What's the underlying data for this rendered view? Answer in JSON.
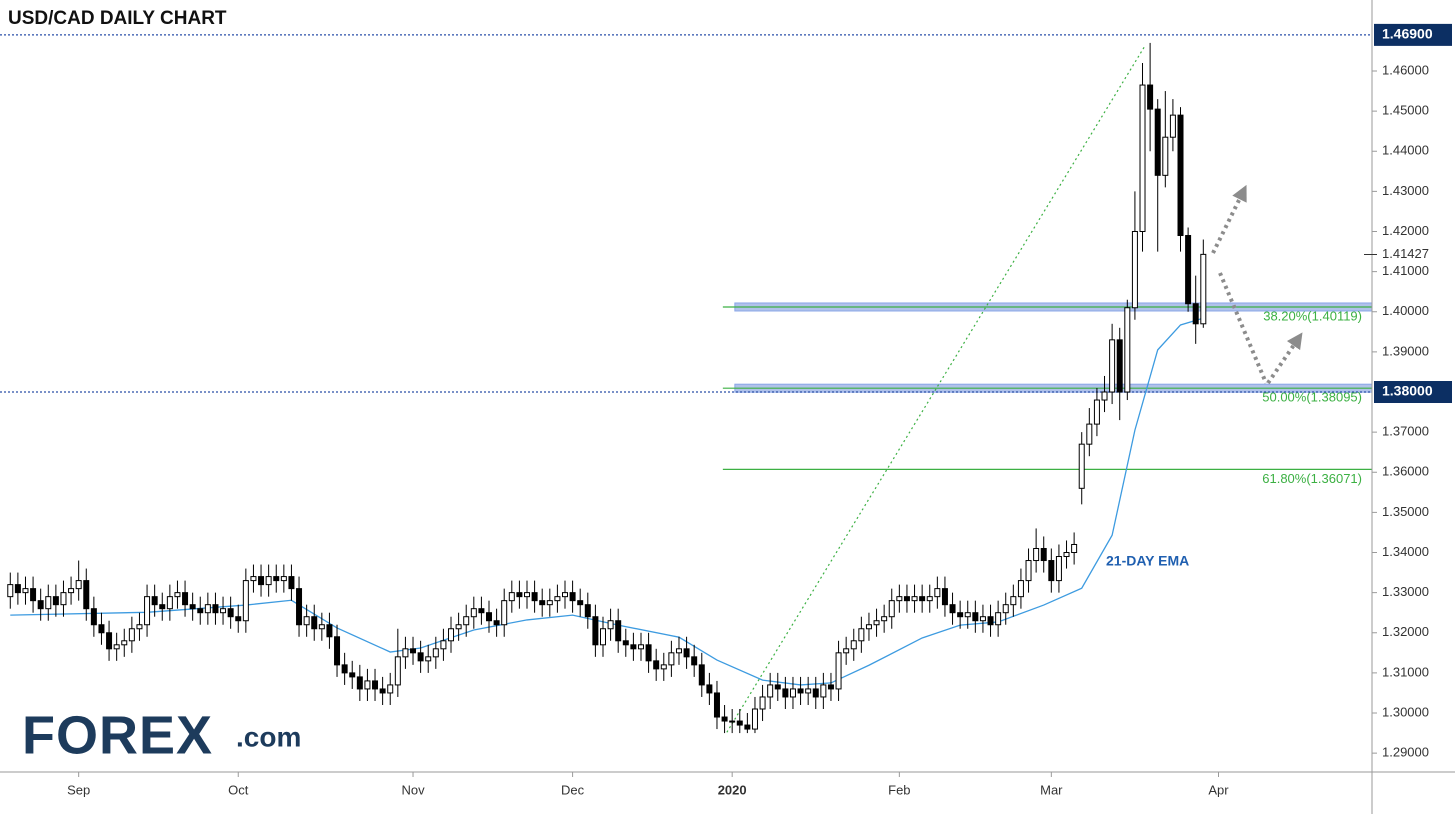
{
  "chart_data": {
    "type": "candlestick",
    "title": "USD/CAD DAILY CHART",
    "up_color": "#ffffff",
    "down_color": "#000000",
    "ylim": [
      1.2853,
      1.4757
    ],
    "yticks": [
      {
        "value": 1.29,
        "label": "1.29000"
      },
      {
        "value": 1.3,
        "label": "1.30000"
      },
      {
        "value": 1.31,
        "label": "1.31000"
      },
      {
        "value": 1.32,
        "label": "1.32000"
      },
      {
        "value": 1.33,
        "label": "1.33000"
      },
      {
        "value": 1.34,
        "label": "1.34000"
      },
      {
        "value": 1.35,
        "label": "1.35000"
      },
      {
        "value": 1.36,
        "label": "1.36000"
      },
      {
        "value": 1.37,
        "label": "1.37000"
      },
      {
        "value": 1.39,
        "label": "1.39000"
      },
      {
        "value": 1.4,
        "label": "1.40000"
      },
      {
        "value": 1.41,
        "label": "1.41000"
      },
      {
        "value": 1.42,
        "label": "1.42000"
      },
      {
        "value": 1.43,
        "label": "1.43000"
      },
      {
        "value": 1.44,
        "label": "1.44000"
      },
      {
        "value": 1.45,
        "label": "1.45000"
      },
      {
        "value": 1.46,
        "label": "1.46000"
      }
    ],
    "xlim": [
      -0.3,
      179.2
    ],
    "xticks": [
      {
        "value": 9,
        "label": "Sep"
      },
      {
        "value": 30,
        "label": "Oct"
      },
      {
        "value": 53,
        "label": "Nov"
      },
      {
        "value": 74,
        "label": "Dec"
      },
      {
        "value": 95,
        "label": "2020"
      },
      {
        "value": 117,
        "label": "Feb"
      },
      {
        "value": 137,
        "label": "Mar"
      },
      {
        "value": 159,
        "label": "Apr"
      }
    ],
    "open": [
      1.329,
      1.332,
      1.33,
      1.331,
      1.328,
      1.326,
      1.329,
      1.327,
      1.33,
      1.331,
      1.333,
      1.326,
      1.322,
      1.32,
      1.316,
      1.317,
      1.318,
      1.321,
      1.322,
      1.329,
      1.327,
      1.326,
      1.329,
      1.33,
      1.327,
      1.326,
      1.325,
      1.327,
      1.325,
      1.326,
      1.324,
      1.323,
      1.333,
      1.334,
      1.332,
      1.334,
      1.333,
      1.334,
      1.331,
      1.322,
      1.324,
      1.321,
      1.322,
      1.319,
      1.312,
      1.31,
      1.309,
      1.306,
      1.308,
      1.306,
      1.305,
      1.307,
      1.314,
      1.316,
      1.315,
      1.313,
      1.314,
      1.316,
      1.318,
      1.321,
      1.322,
      1.324,
      1.326,
      1.325,
      1.323,
      1.322,
      1.328,
      1.33,
      1.329,
      1.33,
      1.328,
      1.327,
      1.328,
      1.329,
      1.33,
      1.328,
      1.327,
      1.324,
      1.317,
      1.321,
      1.323,
      1.318,
      1.317,
      1.316,
      1.317,
      1.313,
      1.311,
      1.312,
      1.315,
      1.316,
      1.314,
      1.312,
      1.307,
      1.305,
      1.299,
      1.298,
      1.298,
      1.297,
      1.296,
      1.301,
      1.304,
      1.307,
      1.306,
      1.304,
      1.306,
      1.305,
      1.306,
      1.304,
      1.307,
      1.306,
      1.315,
      1.316,
      1.318,
      1.321,
      1.322,
      1.323,
      1.324,
      1.328,
      1.329,
      1.328,
      1.329,
      1.328,
      1.329,
      1.331,
      1.327,
      1.325,
      1.324,
      1.325,
      1.323,
      1.324,
      1.322,
      1.325,
      1.327,
      1.329,
      1.333,
      1.338,
      1.341,
      1.338,
      1.333,
      1.339,
      1.34,
      1.356,
      1.367,
      1.372,
      1.378,
      1.38,
      1.393,
      1.38,
      1.401,
      1.42,
      1.4565,
      1.4505,
      1.434,
      1.4435,
      1.449,
      1.419,
      1.402,
      1.397
    ],
    "high": [
      1.335,
      1.335,
      1.334,
      1.334,
      1.331,
      1.332,
      1.332,
      1.333,
      1.334,
      1.338,
      1.336,
      1.329,
      1.325,
      1.323,
      1.32,
      1.321,
      1.324,
      1.325,
      1.332,
      1.332,
      1.33,
      1.332,
      1.333,
      1.333,
      1.33,
      1.329,
      1.33,
      1.33,
      1.329,
      1.329,
      1.327,
      1.336,
      1.337,
      1.337,
      1.337,
      1.337,
      1.337,
      1.337,
      1.334,
      1.327,
      1.327,
      1.325,
      1.325,
      1.322,
      1.315,
      1.313,
      1.312,
      1.311,
      1.311,
      1.309,
      1.31,
      1.321,
      1.319,
      1.319,
      1.318,
      1.317,
      1.319,
      1.321,
      1.324,
      1.325,
      1.327,
      1.329,
      1.329,
      1.328,
      1.326,
      1.331,
      1.333,
      1.333,
      1.333,
      1.333,
      1.331,
      1.331,
      1.332,
      1.333,
      1.333,
      1.331,
      1.33,
      1.327,
      1.324,
      1.326,
      1.326,
      1.321,
      1.32,
      1.32,
      1.32,
      1.316,
      1.315,
      1.318,
      1.319,
      1.319,
      1.317,
      1.315,
      1.31,
      1.308,
      1.302,
      1.301,
      1.301,
      1.3,
      1.304,
      1.307,
      1.31,
      1.31,
      1.309,
      1.309,
      1.309,
      1.309,
      1.309,
      1.31,
      1.31,
      1.318,
      1.319,
      1.321,
      1.324,
      1.325,
      1.326,
      1.327,
      1.331,
      1.332,
      1.332,
      1.332,
      1.332,
      1.332,
      1.334,
      1.334,
      1.33,
      1.328,
      1.328,
      1.328,
      1.327,
      1.327,
      1.328,
      1.33,
      1.332,
      1.336,
      1.341,
      1.346,
      1.344,
      1.341,
      1.342,
      1.343,
      1.345,
      1.37,
      1.376,
      1.381,
      1.384,
      1.397,
      1.396,
      1.403,
      1.43,
      1.462,
      1.467,
      1.453,
      1.455,
      1.453,
      1.451,
      1.421,
      1.409,
      1.418
    ],
    "low": [
      1.326,
      1.327,
      1.327,
      1.325,
      1.323,
      1.323,
      1.324,
      1.324,
      1.327,
      1.328,
      1.323,
      1.319,
      1.317,
      1.313,
      1.313,
      1.314,
      1.315,
      1.318,
      1.319,
      1.324,
      1.323,
      1.323,
      1.326,
      1.324,
      1.323,
      1.322,
      1.322,
      1.322,
      1.322,
      1.321,
      1.32,
      1.32,
      1.33,
      1.329,
      1.329,
      1.33,
      1.33,
      1.328,
      1.319,
      1.319,
      1.318,
      1.318,
      1.316,
      1.309,
      1.307,
      1.306,
      1.303,
      1.303,
      1.303,
      1.302,
      1.302,
      1.304,
      1.311,
      1.312,
      1.31,
      1.31,
      1.311,
      1.313,
      1.315,
      1.318,
      1.319,
      1.321,
      1.322,
      1.32,
      1.319,
      1.319,
      1.325,
      1.326,
      1.326,
      1.325,
      1.324,
      1.324,
      1.325,
      1.326,
      1.325,
      1.324,
      1.321,
      1.314,
      1.314,
      1.318,
      1.315,
      1.314,
      1.313,
      1.313,
      1.31,
      1.308,
      1.308,
      1.309,
      1.312,
      1.311,
      1.309,
      1.304,
      1.302,
      1.296,
      1.295,
      1.295,
      1.295,
      1.295,
      1.295,
      1.298,
      1.301,
      1.303,
      1.301,
      1.301,
      1.302,
      1.302,
      1.301,
      1.301,
      1.303,
      1.303,
      1.312,
      1.313,
      1.315,
      1.318,
      1.319,
      1.32,
      1.321,
      1.325,
      1.325,
      1.325,
      1.325,
      1.325,
      1.326,
      1.324,
      1.322,
      1.321,
      1.321,
      1.32,
      1.32,
      1.319,
      1.319,
      1.322,
      1.324,
      1.326,
      1.33,
      1.335,
      1.335,
      1.33,
      1.33,
      1.336,
      1.337,
      1.352,
      1.364,
      1.369,
      1.375,
      1.377,
      1.373,
      1.378,
      1.398,
      1.415,
      1.44,
      1.415,
      1.431,
      1.44,
      1.415,
      1.4,
      1.392,
      1.396
    ],
    "close": [
      1.332,
      1.33,
      1.331,
      1.328,
      1.326,
      1.329,
      1.327,
      1.33,
      1.331,
      1.333,
      1.326,
      1.322,
      1.32,
      1.316,
      1.317,
      1.318,
      1.321,
      1.322,
      1.329,
      1.327,
      1.326,
      1.329,
      1.33,
      1.327,
      1.326,
      1.325,
      1.327,
      1.325,
      1.326,
      1.324,
      1.323,
      1.333,
      1.334,
      1.332,
      1.334,
      1.333,
      1.334,
      1.331,
      1.322,
      1.324,
      1.321,
      1.322,
      1.319,
      1.312,
      1.31,
      1.309,
      1.306,
      1.308,
      1.306,
      1.305,
      1.307,
      1.314,
      1.316,
      1.315,
      1.313,
      1.314,
      1.316,
      1.318,
      1.321,
      1.322,
      1.324,
      1.326,
      1.325,
      1.323,
      1.322,
      1.328,
      1.33,
      1.329,
      1.33,
      1.328,
      1.327,
      1.328,
      1.329,
      1.33,
      1.328,
      1.327,
      1.324,
      1.317,
      1.321,
      1.323,
      1.318,
      1.317,
      1.316,
      1.317,
      1.313,
      1.311,
      1.312,
      1.315,
      1.316,
      1.314,
      1.312,
      1.307,
      1.305,
      1.299,
      1.298,
      1.298,
      1.297,
      1.296,
      1.301,
      1.304,
      1.307,
      1.306,
      1.304,
      1.306,
      1.305,
      1.306,
      1.304,
      1.307,
      1.306,
      1.315,
      1.316,
      1.318,
      1.321,
      1.322,
      1.323,
      1.324,
      1.328,
      1.329,
      1.328,
      1.329,
      1.328,
      1.329,
      1.331,
      1.327,
      1.325,
      1.324,
      1.325,
      1.323,
      1.324,
      1.322,
      1.325,
      1.327,
      1.329,
      1.333,
      1.338,
      1.341,
      1.338,
      1.333,
      1.339,
      1.34,
      1.342,
      1.367,
      1.372,
      1.378,
      1.38,
      1.393,
      1.38,
      1.401,
      1.42,
      1.4565,
      1.4505,
      1.434,
      1.4435,
      1.449,
      1.419,
      1.402,
      1.397,
      1.4143
    ],
    "ema": {
      "name": "21-DAY EMA",
      "color": "#3d9be0",
      "x": [
        0,
        18,
        31,
        37,
        43,
        50,
        54,
        61,
        68,
        74,
        80,
        88,
        93,
        99,
        104,
        108,
        113,
        120,
        125,
        130,
        136,
        141,
        145,
        148,
        151,
        154,
        157
      ],
      "values": [
        1.3244,
        1.3251,
        1.3269,
        1.3281,
        1.3212,
        1.3152,
        1.3162,
        1.3207,
        1.3232,
        1.3244,
        1.3219,
        1.3189,
        1.3132,
        1.3082,
        1.307,
        1.3075,
        1.3119,
        1.3187,
        1.3219,
        1.3227,
        1.3269,
        1.3311,
        1.3443,
        1.3705,
        1.3905,
        1.3967,
        1.3984
      ]
    },
    "fib_color": "#3cb043",
    "fib_trendline": {
      "x": [
        94.3,
        149.4
      ],
      "y": [
        1.2952,
        1.4665
      ]
    },
    "fib_levels": [
      {
        "value": 1.40119,
        "label": "38.20%(1.40119)"
      },
      {
        "value": 1.38095,
        "label": "50.00%(1.38095)"
      },
      {
        "value": 1.36071,
        "label": "61.80%(1.36071)"
      }
    ],
    "price_lines": [
      {
        "value": 1.469,
        "label": "1.46900"
      },
      {
        "value": 1.38,
        "label": "1.38000"
      }
    ],
    "last_price": {
      "value": 1.41427,
      "label": "1.41427"
    },
    "logo": {
      "brand": "FOREX",
      "suffix": ".com"
    }
  }
}
